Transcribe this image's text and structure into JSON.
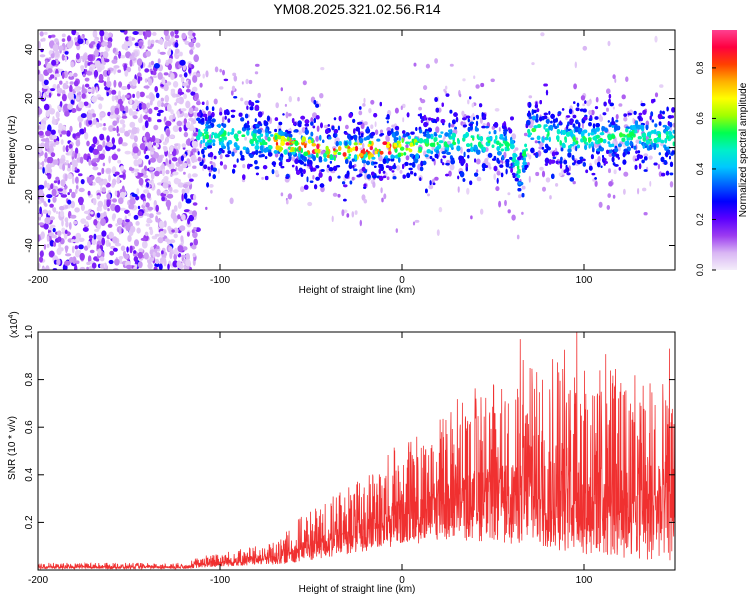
{
  "title": "YM08.2025.321.02.56.R14",
  "chart_data": [
    {
      "type": "heatmap",
      "name": "spectrogram",
      "xlabel": "Height of straight line (km)",
      "ylabel": "Frequency (Hz)",
      "xlim": [
        -200,
        150
      ],
      "ylim": [
        -50,
        48
      ],
      "xticks": [
        -200,
        -100,
        0,
        100
      ],
      "yticks": [
        -40,
        -20,
        0,
        20,
        40
      ],
      "colorbar": {
        "label": "Normalized spectral amplitude",
        "range": [
          0,
          0.95
        ],
        "ticks": [
          "0.0",
          "0.2",
          "0.4",
          "0.6",
          "0.8"
        ],
        "tick_values": [
          0.0,
          0.2,
          0.4,
          0.6,
          0.8
        ],
        "colormap": [
          "#f4eefa",
          "#d9b6f4",
          "#9c3cf0",
          "#5a00ff",
          "#0000ff",
          "#0064ff",
          "#00c8ff",
          "#00f0c8",
          "#00ff50",
          "#a0ff00",
          "#ffff00",
          "#ffb000",
          "#ff4000",
          "#ff0040",
          "#ff4090"
        ]
      },
      "ridge": [
        {
          "x": -110,
          "y": 5
        },
        {
          "x": -90,
          "y": 4
        },
        {
          "x": -70,
          "y": 2
        },
        {
          "x": -50,
          "y": 0
        },
        {
          "x": -35,
          "y": -2
        },
        {
          "x": -20,
          "y": -1
        },
        {
          "x": 0,
          "y": 0
        },
        {
          "x": 20,
          "y": 2
        },
        {
          "x": 40,
          "y": 3
        },
        {
          "x": 60,
          "y": 0
        },
        {
          "x": 65,
          "y": -12
        },
        {
          "x": 70,
          "y": 8
        },
        {
          "x": 90,
          "y": 3
        },
        {
          "x": 110,
          "y": 4
        },
        {
          "x": 130,
          "y": 5
        },
        {
          "x": 150,
          "y": 3
        }
      ],
      "peak_zone": {
        "x_from": -70,
        "x_to": -5,
        "max_amplitude": 0.95
      }
    },
    {
      "type": "line",
      "name": "snr",
      "xlabel": "Height of straight line (km)",
      "ylabel": "SNR (10 * v/v)",
      "multiplier": "(x10",
      "multiplier_exp": "4",
      "multiplier_close": ")",
      "xlim": [
        -200,
        150
      ],
      "ylim": [
        0,
        1.0
      ],
      "xticks": [
        -200,
        -100,
        0,
        100
      ],
      "yticks": [
        "0.2",
        "0.4",
        "0.6",
        "0.8",
        "1.0"
      ],
      "ytick_values": [
        0.2,
        0.4,
        0.6,
        0.8,
        1.0
      ],
      "color": "#f03030",
      "envelope": [
        {
          "x": -200,
          "base": 0.005,
          "peak": 0.03
        },
        {
          "x": -120,
          "base": 0.005,
          "peak": 0.03
        },
        {
          "x": -110,
          "base": 0.01,
          "peak": 0.06
        },
        {
          "x": -80,
          "base": 0.02,
          "peak": 0.1
        },
        {
          "x": -70,
          "base": 0.02,
          "peak": 0.12
        },
        {
          "x": -60,
          "base": 0.03,
          "peak": 0.2
        },
        {
          "x": -40,
          "base": 0.05,
          "peak": 0.3
        },
        {
          "x": -20,
          "base": 0.08,
          "peak": 0.4
        },
        {
          "x": 0,
          "base": 0.1,
          "peak": 0.55
        },
        {
          "x": 20,
          "base": 0.12,
          "peak": 0.65
        },
        {
          "x": 40,
          "base": 0.12,
          "peak": 0.8
        },
        {
          "x": 70,
          "base": 0.1,
          "peak": 0.9
        },
        {
          "x": 100,
          "base": 0.06,
          "peak": 0.95
        },
        {
          "x": 130,
          "base": 0.04,
          "peak": 0.85
        },
        {
          "x": 150,
          "base": 0.03,
          "peak": 0.75
        }
      ],
      "spikes": [
        {
          "x": 96,
          "y": 1.02
        },
        {
          "x": 65,
          "y": 0.97
        },
        {
          "x": 147,
          "y": 0.93
        }
      ]
    }
  ]
}
